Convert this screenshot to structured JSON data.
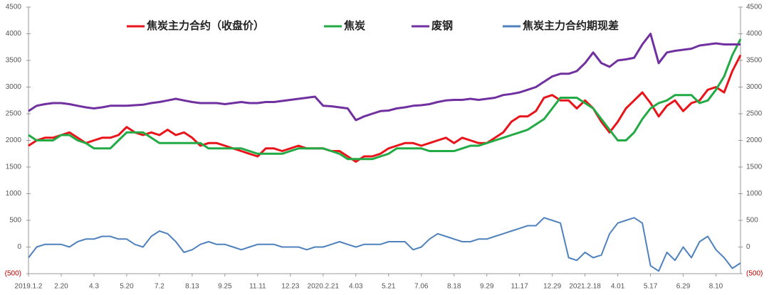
{
  "chart_data": {
    "type": "line",
    "categories": [
      "2019.1.2",
      null,
      null,
      null,
      "2.20",
      null,
      null,
      null,
      "4.3",
      null,
      null,
      null,
      "5.20",
      null,
      null,
      null,
      "7.2",
      null,
      null,
      null,
      "8.13",
      null,
      null,
      null,
      "9.25",
      null,
      null,
      null,
      "11.11",
      null,
      null,
      null,
      "12.23",
      null,
      null,
      null,
      "2020.2.21",
      null,
      null,
      null,
      "4.03",
      null,
      null,
      null,
      "5.21",
      null,
      null,
      null,
      "7.06",
      null,
      null,
      null,
      "8.18",
      null,
      null,
      null,
      "9.29",
      null,
      null,
      null,
      "11.17",
      null,
      null,
      null,
      "12.29",
      null,
      null,
      null,
      "2021.2.18",
      null,
      null,
      null,
      "4.01",
      null,
      null,
      null,
      "5.17",
      null,
      null,
      null,
      "6.29",
      null,
      null,
      null,
      "8.10",
      null,
      null,
      null
    ],
    "series": [
      {
        "name": "焦炭主力合约（收盘价）",
        "color": "#e8141a",
        "values": [
          1900,
          2000,
          2050,
          2050,
          2100,
          2150,
          2050,
          1950,
          2000,
          2050,
          2050,
          2100,
          2250,
          2150,
          2100,
          2150,
          2100,
          2200,
          2100,
          2150,
          2050,
          1900,
          1950,
          1950,
          1900,
          1850,
          1800,
          1750,
          1700,
          1850,
          1850,
          1800,
          1850,
          1900,
          1850,
          1850,
          1850,
          1800,
          1800,
          1700,
          1600,
          1700,
          1700,
          1750,
          1850,
          1900,
          1950,
          1950,
          1900,
          1950,
          2000,
          2050,
          1950,
          2050,
          2000,
          1950,
          1950,
          2050,
          2150,
          2350,
          2450,
          2450,
          2550,
          2800,
          2850,
          2750,
          2750,
          2600,
          2750,
          2600,
          2350,
          2150,
          2350,
          2600,
          2750,
          2900,
          2700,
          2450,
          2650,
          2750,
          2550,
          2700,
          2750,
          2950,
          3000,
          2900,
          3300,
          3600
        ]
      },
      {
        "name": "焦炭",
        "color": "#22aa44",
        "values": [
          2100,
          2000,
          2000,
          2000,
          2100,
          2100,
          2000,
          1950,
          1850,
          1850,
          1850,
          2000,
          2150,
          2150,
          2150,
          2050,
          1950,
          1950,
          1950,
          1950,
          1950,
          1950,
          1850,
          1850,
          1850,
          1850,
          1850,
          1800,
          1750,
          1750,
          1750,
          1750,
          1800,
          1850,
          1850,
          1850,
          1850,
          1800,
          1750,
          1650,
          1650,
          1650,
          1650,
          1700,
          1750,
          1850,
          1850,
          1850,
          1850,
          1800,
          1800,
          1800,
          1800,
          1850,
          1900,
          1900,
          1950,
          2000,
          2050,
          2100,
          2150,
          2200,
          2300,
          2400,
          2600,
          2800,
          2800,
          2800,
          2700,
          2600,
          2400,
          2200,
          2000,
          2000,
          2150,
          2400,
          2600,
          2700,
          2750,
          2850,
          2850,
          2850,
          2700,
          2750,
          2950,
          3200,
          3600,
          3900
        ]
      },
      {
        "name": "废钢",
        "color": "#7030a0",
        "values": [
          2550,
          2650,
          2680,
          2700,
          2700,
          2680,
          2650,
          2620,
          2600,
          2620,
          2650,
          2650,
          2650,
          2660,
          2670,
          2700,
          2720,
          2750,
          2780,
          2750,
          2720,
          2700,
          2700,
          2700,
          2680,
          2700,
          2720,
          2700,
          2700,
          2720,
          2720,
          2740,
          2760,
          2780,
          2800,
          2820,
          2650,
          2640,
          2620,
          2600,
          2380,
          2450,
          2500,
          2550,
          2560,
          2600,
          2620,
          2650,
          2660,
          2680,
          2720,
          2750,
          2760,
          2760,
          2780,
          2760,
          2780,
          2800,
          2850,
          2870,
          2900,
          2950,
          3000,
          3100,
          3200,
          3250,
          3250,
          3300,
          3450,
          3650,
          3450,
          3380,
          3500,
          3520,
          3550,
          3800,
          4000,
          3450,
          3650,
          3680,
          3700,
          3720,
          3780,
          3800,
          3820,
          3800,
          3800,
          3800
        ]
      },
      {
        "name": "焦炭主力合约期现差",
        "color": "#4f81bd",
        "axis": "y2",
        "values": [
          -200,
          0,
          50,
          50,
          50,
          0,
          100,
          150,
          150,
          200,
          200,
          150,
          150,
          50,
          0,
          200,
          300,
          250,
          100,
          -100,
          -50,
          50,
          100,
          50,
          50,
          0,
          -50,
          0,
          50,
          50,
          50,
          0,
          0,
          0,
          -50,
          0,
          0,
          50,
          100,
          50,
          0,
          50,
          50,
          50,
          100,
          100,
          100,
          -50,
          0,
          150,
          250,
          200,
          150,
          100,
          100,
          150,
          150,
          200,
          250,
          300,
          350,
          400,
          400,
          550,
          500,
          450,
          -200,
          -250,
          -100,
          -200,
          -150,
          250,
          450,
          500,
          550,
          450,
          -350,
          -450,
          -100,
          -250,
          0,
          -200,
          100,
          200,
          -50,
          -200,
          -400,
          -300
        ]
      }
    ],
    "ylim": [
      -500,
      4500
    ],
    "yticks": [
      {
        "value": -500,
        "label": "(500)"
      },
      0,
      500,
      1000,
      1500,
      2000,
      2500,
      3000,
      3500,
      4000,
      4500
    ],
    "y2lim": [
      -500,
      4500
    ],
    "y2ticks": [
      {
        "value": -500,
        "label": "(500)"
      },
      0,
      500,
      1000,
      1500,
      2000,
      2500,
      3000,
      3500,
      4000,
      4500
    ],
    "grid": false,
    "legend": "top"
  }
}
